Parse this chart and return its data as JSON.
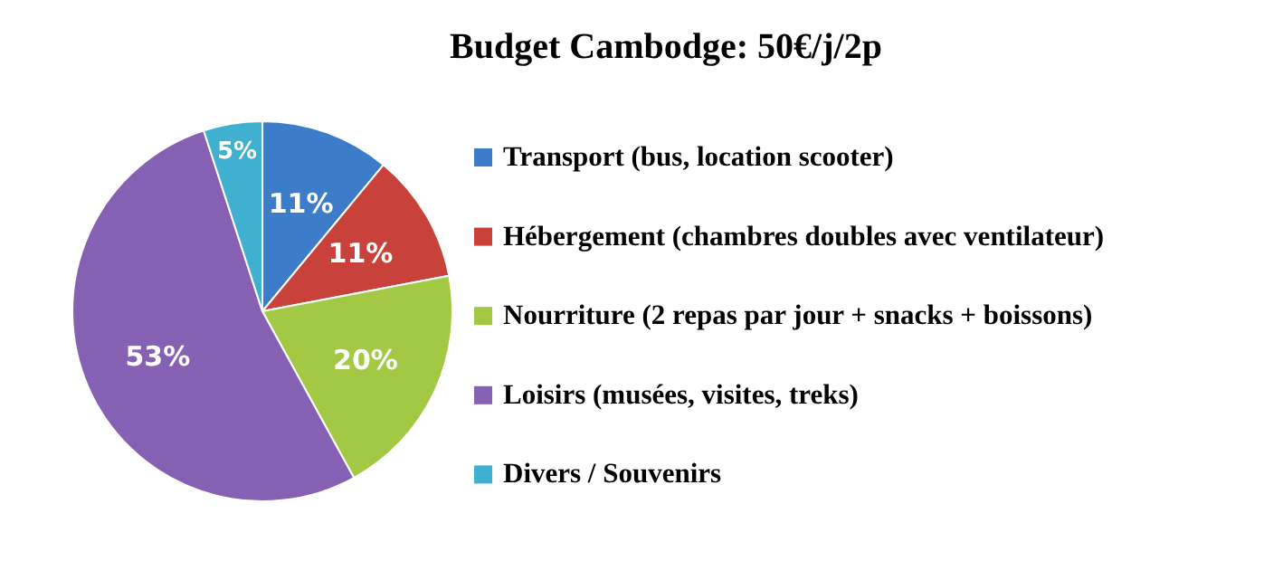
{
  "chart_data": {
    "type": "pie",
    "title": "Budget Cambodge: 50€/j/2p",
    "categories": [
      "Transport (bus, location scooter)",
      "Hébergement (chambres doubles avec ventilateur)",
      "Nourriture (2 repas par jour + snacks + boissons)",
      "Loisirs (musées, visites, treks)",
      "Divers / Souvenirs"
    ],
    "values": [
      11,
      11,
      20,
      53,
      5
    ],
    "colors": [
      "#3d7cc9",
      "#c9413b",
      "#a3c844",
      "#8660b3",
      "#3fb0d0"
    ],
    "value_labels": [
      "11%",
      "11%",
      "20%",
      "53%",
      "5%"
    ],
    "legend": "right"
  }
}
